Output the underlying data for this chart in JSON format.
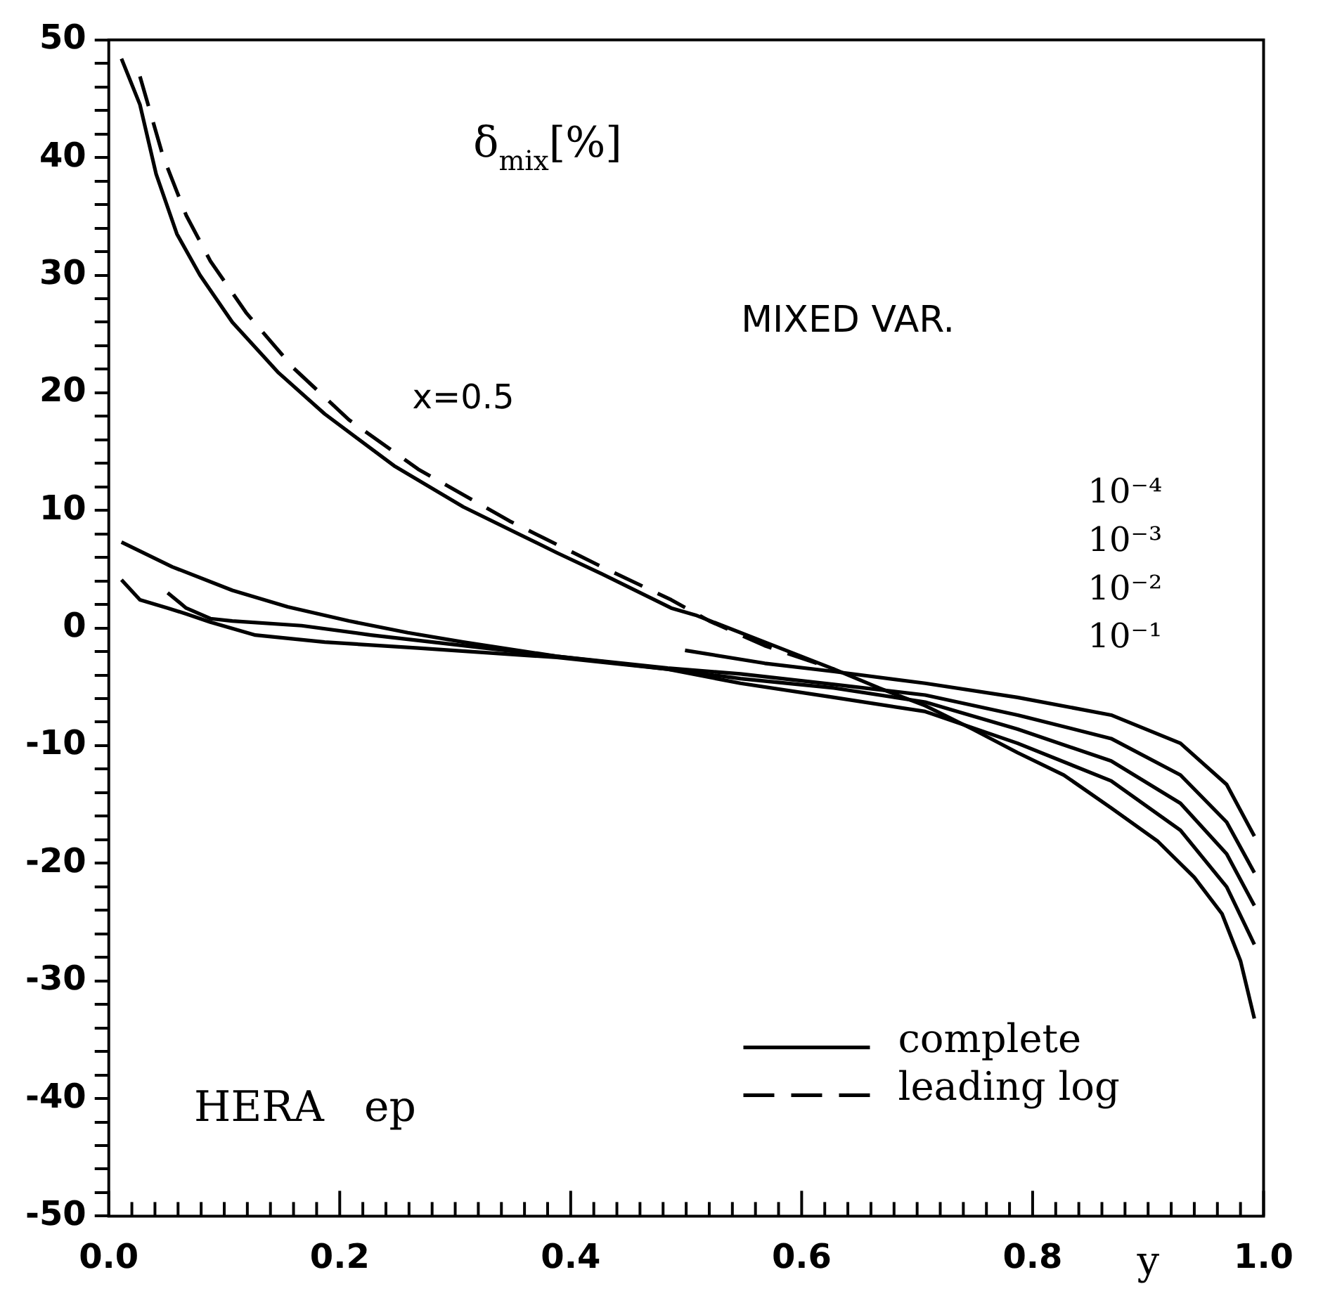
{
  "chart_data": {
    "type": "line",
    "ylabel": "δ$_{mix}$[%]",
    "xlabel": "y",
    "annotations": [
      "MIXED VAR.",
      "HERA   ep",
      "x=0.5",
      "10⁻⁴",
      "10⁻³",
      "10⁻²",
      "10⁻¹"
    ],
    "xlim": [
      0,
      1
    ],
    "ylim": [
      -50,
      50
    ],
    "xticks": [
      {
        "value": 0,
        "label": "0.0"
      },
      {
        "value": 0.02,
        "label": null
      },
      {
        "value": 0.04,
        "label": null
      },
      {
        "value": 0.06,
        "label": null
      },
      {
        "value": 0.08,
        "label": null
      },
      {
        "value": 0.1,
        "label": null
      },
      {
        "value": 0.12,
        "label": null
      },
      {
        "value": 0.14,
        "label": null
      },
      {
        "value": 0.16,
        "label": null
      },
      {
        "value": 0.18,
        "label": null
      },
      0.2,
      {
        "value": 0.22,
        "label": null
      },
      {
        "value": 0.24,
        "label": null
      },
      {
        "value": 0.26,
        "label": null
      },
      {
        "value": 0.28,
        "label": null
      },
      {
        "value": 0.3,
        "label": null
      },
      {
        "value": 0.32,
        "label": null
      },
      {
        "value": 0.34,
        "label": null
      },
      {
        "value": 0.36,
        "label": null
      },
      {
        "value": 0.38,
        "label": null
      },
      0.4,
      {
        "value": 0.42,
        "label": null
      },
      {
        "value": 0.44,
        "label": null
      },
      {
        "value": 0.46,
        "label": null
      },
      {
        "value": 0.48,
        "label": null
      },
      {
        "value": 0.5,
        "label": null
      },
      {
        "value": 0.52,
        "label": null
      },
      {
        "value": 0.54,
        "label": null
      },
      {
        "value": 0.56,
        "label": null
      },
      {
        "value": 0.58,
        "label": null
      },
      0.6,
      {
        "value": 0.62,
        "label": null
      },
      {
        "value": 0.64,
        "label": null
      },
      {
        "value": 0.66,
        "label": null
      },
      {
        "value": 0.68,
        "label": null
      },
      {
        "value": 0.7,
        "label": null
      },
      {
        "value": 0.72,
        "label": null
      },
      {
        "value": 0.74,
        "label": null
      },
      {
        "value": 0.76,
        "label": null
      },
      {
        "value": 0.78,
        "label": null
      },
      0.8,
      {
        "value": 0.82,
        "label": null
      },
      {
        "value": 0.84,
        "label": null
      },
      {
        "value": 0.86,
        "label": null
      },
      {
        "value": 0.88,
        "label": null
      },
      {
        "value": 0.9,
        "label": null
      },
      {
        "value": 0.92,
        "label": null
      },
      {
        "value": 0.94,
        "label": null
      },
      {
        "value": 0.96,
        "label": null
      },
      {
        "value": 0.98,
        "label": null
      },
      {
        "value": 1,
        "label": "1.0"
      }
    ],
    "yticks": [
      -50,
      {
        "value": -48,
        "label": null
      },
      {
        "value": -46,
        "label": null
      },
      {
        "value": -44,
        "label": null
      },
      {
        "value": -42,
        "label": null
      },
      -40,
      {
        "value": -38,
        "label": null
      },
      {
        "value": -36,
        "label": null
      },
      {
        "value": -34,
        "label": null
      },
      {
        "value": -32,
        "label": null
      },
      -30,
      {
        "value": -28,
        "label": null
      },
      {
        "value": -26,
        "label": null
      },
      {
        "value": -24,
        "label": null
      },
      {
        "value": -22,
        "label": null
      },
      -20,
      {
        "value": -18,
        "label": null
      },
      {
        "value": -16,
        "label": null
      },
      {
        "value": -14,
        "label": null
      },
      {
        "value": -12,
        "label": null
      },
      -10,
      {
        "value": -8,
        "label": null
      },
      {
        "value": -6,
        "label": null
      },
      {
        "value": -4,
        "label": null
      },
      {
        "value": -2,
        "label": null
      },
      0,
      {
        "value": 2,
        "label": null
      },
      {
        "value": 4,
        "label": null
      },
      {
        "value": 6,
        "label": null
      },
      {
        "value": 8,
        "label": null
      },
      10,
      {
        "value": 12,
        "label": null
      },
      {
        "value": 14,
        "label": null
      },
      {
        "value": 16,
        "label": null
      },
      {
        "value": 18,
        "label": null
      },
      20,
      {
        "value": 22,
        "label": null
      },
      {
        "value": 24,
        "label": null
      },
      {
        "value": 26,
        "label": null
      },
      {
        "value": 28,
        "label": null
      },
      30,
      {
        "value": 32,
        "label": null
      },
      {
        "value": 34,
        "label": null
      },
      {
        "value": 36,
        "label": null
      },
      {
        "value": 38,
        "label": null
      },
      40,
      {
        "value": 42,
        "label": null
      },
      {
        "value": 44,
        "label": null
      },
      {
        "value": 46,
        "label": null
      },
      {
        "value": 48,
        "label": null
      },
      50
    ],
    "grid": false,
    "legend": "bottom right",
    "marker": "none",
    "series": [
      {
        "name": "complete",
        "color": "#000000",
        "line_style": "solid",
        "x": [
          0.011,
          0.027,
          0.041,
          0.059,
          0.079,
          0.107,
          0.147,
          0.187,
          0.247,
          0.307,
          0.388,
          0.427,
          0.487,
          0.508,
          0.568,
          0.628,
          0.667,
          0.707,
          0.748,
          0.787,
          0.827,
          0.868,
          0.908,
          0.94,
          0.964,
          0.98,
          0.992
        ],
        "values": [
          48.4,
          44.5,
          38.6,
          33.5,
          30.0,
          26.0,
          21.7,
          18.2,
          13.8,
          10.3,
          6.4,
          4.6,
          1.7,
          1.1,
          -1.2,
          -3.5,
          -5.1,
          -6.6,
          -8.6,
          -10.6,
          -12.5,
          -15.3,
          -18.1,
          -21.2,
          -24.3,
          -28.3,
          -33.2
        ]
      },
      {
        "name": "leading log",
        "color": "#000000",
        "line_style": "dashed",
        "x": [
          0.027,
          0.047,
          0.067,
          0.088,
          0.119,
          0.16,
          0.208,
          0.268,
          0.347,
          0.427,
          0.487,
          0.52,
          0.568,
          0.628
        ],
        "values": [
          46.9,
          40.1,
          35.1,
          31.2,
          26.8,
          22.1,
          17.7,
          13.5,
          9.1,
          5.2,
          2.4,
          0.6,
          -1.5,
          -3.5
        ]
      },
      {
        "color": "#000000",
        "line_style": "solid",
        "x": [
          0.011,
          0.055,
          0.107,
          0.155,
          0.208,
          0.259,
          0.307,
          0.388,
          0.484,
          0.547,
          0.628,
          0.707,
          0.787,
          0.868,
          0.928,
          0.968,
          0.992
        ],
        "values": [
          7.3,
          5.2,
          3.2,
          1.8,
          0.6,
          -0.4,
          -1.2,
          -2.4,
          -3.5,
          -4.7,
          -5.9,
          -7.1,
          -9.8,
          -13.0,
          -17.2,
          -22.0,
          -26.9
        ]
      },
      {
        "color": "#000000",
        "line_style": "solid",
        "x": [
          0.011,
          0.027,
          0.051,
          0.067,
          0.088,
          0.127,
          0.187,
          0.268,
          0.388,
          0.484,
          0.547,
          0.628,
          0.707,
          0.787,
          0.868,
          0.928,
          0.968,
          0.992
        ],
        "values": [
          4.1,
          2.4,
          1.7,
          1.2,
          0.5,
          -0.6,
          -1.2,
          -1.7,
          -2.5,
          -3.5,
          -4.3,
          -5.1,
          -6.3,
          -8.6,
          -11.3,
          -14.9,
          -19.2,
          -23.6
        ]
      },
      {
        "color": "#000000",
        "line_style": "solid",
        "x": [
          0.051,
          0.067,
          0.088,
          0.107,
          0.167,
          0.227,
          0.307,
          0.388,
          0.484,
          0.547,
          0.628,
          0.707,
          0.787,
          0.868,
          0.928,
          0.968,
          0.992
        ],
        "values": [
          3.0,
          1.7,
          0.8,
          0.6,
          0.2,
          -0.6,
          -1.5,
          -2.4,
          -3.4,
          -3.9,
          -4.8,
          -5.7,
          -7.4,
          -9.4,
          -12.5,
          -16.5,
          -20.8
        ]
      },
      {
        "color": "#000000",
        "line_style": "solid",
        "x": [
          0.499,
          0.568,
          0.628,
          0.707,
          0.787,
          0.868,
          0.928,
          0.968,
          0.992
        ],
        "values": [
          -1.9,
          -3.0,
          -3.7,
          -4.7,
          -5.9,
          -7.4,
          -9.8,
          -13.3,
          -17.7
        ]
      }
    ]
  }
}
